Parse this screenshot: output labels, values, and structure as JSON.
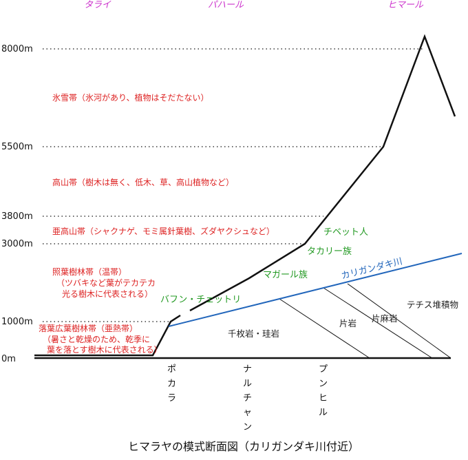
{
  "regions": {
    "tarai": "タライ",
    "pahar": "パハール",
    "himal": "ヒマール"
  },
  "altitudes": {
    "a8000": "8000m",
    "a5500": "5500m",
    "a3800": "3800m",
    "a3000": "3000m",
    "a1000": "1000m",
    "a0": "0m"
  },
  "zones": {
    "snow": "氷雪帯（氷河があり、植物はそだたない）",
    "alpine": "高山帯（樹木は無く、低木、草、高山植物など）",
    "subalpine": "亜高山帯（シャクナゲ、モミ属針葉樹、ズダヤクシュなど）",
    "temperate_1": "照葉樹林帯（温帯）",
    "temperate_2": "（ツバキなど葉がテカテカ",
    "temperate_3": "光る樹木に代表される）",
    "subtropical_1": "落葉広葉樹林帯（亜熱帯）",
    "subtropical_2": "（暑さと乾燥のため、乾季に",
    "subtropical_3": "葉を落とす樹木に代表される）"
  },
  "peoples": {
    "tibetan": "チベット人",
    "thakali": "タカリー族",
    "magar": "マガール族",
    "bahun_chhetri": "バフン・チェットリ"
  },
  "river": "カリガンダキ川",
  "rocks": {
    "phyllite": "千枚岩・珪岩",
    "schist": "片岩",
    "gneiss": "片麻岩",
    "tethys": "テチス堆積物"
  },
  "towns": {
    "pokhara": [
      "ポ",
      "カ",
      "ラ"
    ],
    "narchyang": [
      "ナ",
      "ル",
      "チ",
      "ャ",
      "ン"
    ],
    "pumhil": [
      "プ",
      "ン",
      "ヒ",
      "ル"
    ]
  },
  "caption": "ヒマラヤの模式断面図（カリガンダキ川付近）",
  "colors": {
    "region": "#cc33cc",
    "zone": "#dd2222",
    "people": "#229922",
    "river": "#2266bb",
    "ink": "#111111"
  }
}
